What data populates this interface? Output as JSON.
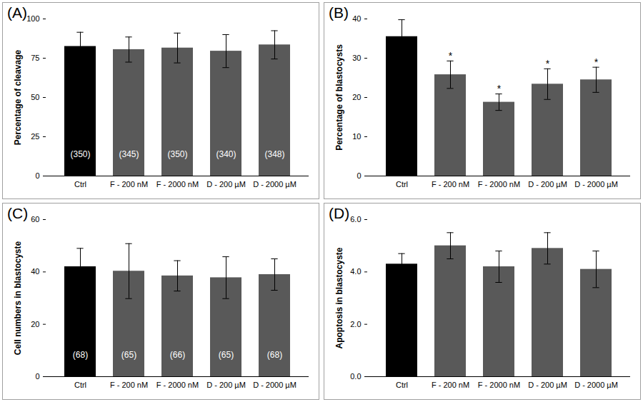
{
  "chart_data": [
    {
      "type": "bar",
      "title": "(A)",
      "ylabel": "Percentage of cleavage",
      "categories": [
        "Ctrl",
        "F - 200 nM",
        "F - 2000 nM",
        "D - 200 µM",
        "D - 2000 µM"
      ],
      "values": [
        82.5,
        80.5,
        81.5,
        79.5,
        83.5
      ],
      "errors": [
        9,
        8,
        9.5,
        10.5,
        9
      ],
      "annotations": [
        "(350)",
        "(345)",
        "(350)",
        "(340)",
        "(348)"
      ],
      "colors": [
        "#000000",
        "#595959",
        "#595959",
        "#595959",
        "#595959"
      ],
      "ylim": [
        0,
        100
      ],
      "yticks": [
        0,
        25,
        50,
        75,
        100
      ],
      "grid": false
    },
    {
      "type": "bar",
      "title": "(B)",
      "ylabel": "Percentage of blastocysts",
      "categories": [
        "Ctrl",
        "F - 200 nM",
        "F - 2000 nM",
        "D - 200 µM",
        "D - 2000 µM"
      ],
      "values": [
        35.5,
        25.8,
        18.8,
        23.4,
        24.5
      ],
      "errors": [
        4.3,
        3.5,
        2.1,
        3.9,
        3.2
      ],
      "significance": [
        null,
        "*",
        "*",
        "*",
        "*"
      ],
      "colors": [
        "#000000",
        "#595959",
        "#595959",
        "#595959",
        "#595959"
      ],
      "ylim": [
        0,
        40
      ],
      "yticks": [
        0,
        10,
        20,
        30,
        40
      ],
      "grid": false
    },
    {
      "type": "bar",
      "title": "(C)",
      "ylabel": "Cell numbers in blastocyste",
      "categories": [
        "Ctrl",
        "F - 200 nM",
        "F - 2000 nM",
        "D - 200 µM",
        "D - 2000 µM"
      ],
      "values": [
        42,
        40.3,
        38.5,
        37.8,
        39
      ],
      "errors": [
        7,
        10.5,
        5.8,
        8,
        6
      ],
      "annotations": [
        "(68)",
        "(65)",
        "(66)",
        "(65)",
        "(68)"
      ],
      "colors": [
        "#000000",
        "#595959",
        "#595959",
        "#595959",
        "#595959"
      ],
      "ylim": [
        0,
        60
      ],
      "yticks": [
        0,
        20,
        40,
        60
      ],
      "grid": false
    },
    {
      "type": "bar",
      "title": "(D)",
      "ylabel": "Apoptosis in blastocyste",
      "categories": [
        "Ctrl",
        "F - 200 nM",
        "F - 2000 nM",
        "D - 200 µM",
        "D - 2000 µM"
      ],
      "values": [
        4.3,
        5.0,
        4.2,
        4.9,
        4.1
      ],
      "errors": [
        0.4,
        0.5,
        0.6,
        0.6,
        0.7
      ],
      "colors": [
        "#000000",
        "#595959",
        "#595959",
        "#595959",
        "#595959"
      ],
      "ylim": [
        0,
        6
      ],
      "yticks": [
        0,
        2,
        4,
        6
      ],
      "grid": false
    }
  ]
}
